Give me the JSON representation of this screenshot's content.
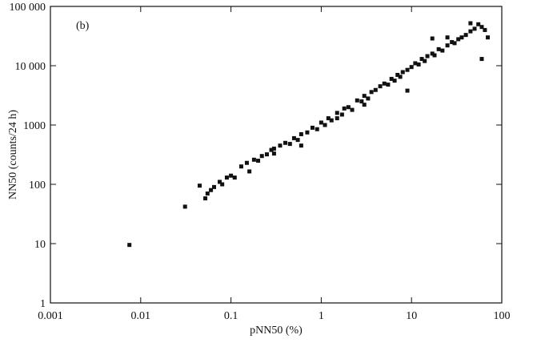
{
  "chart_data": {
    "type": "scatter",
    "annotation": "(b)",
    "x_label": "pNN50 (%)",
    "y_label": "NN50 (counts/24 h)",
    "xscale": "log",
    "yscale": "log",
    "xlim": [
      0.001,
      100
    ],
    "ylim": [
      1,
      100000
    ],
    "xticks": [
      0.001,
      0.01,
      0.1,
      1,
      10,
      100
    ],
    "yticks": [
      1,
      10,
      100,
      1000,
      {
        "value": 10000,
        "label": "10 000"
      },
      {
        "value": 100000,
        "label": "100 000"
      }
    ],
    "color": "#111111",
    "x": [
      0.0075,
      0.031,
      0.045,
      0.052,
      0.055,
      0.06,
      0.065,
      0.075,
      0.08,
      0.09,
      0.1,
      0.11,
      0.13,
      0.16,
      0.15,
      0.18,
      0.2,
      0.22,
      0.25,
      0.28,
      0.3,
      0.35,
      0.4,
      0.45,
      0.5,
      0.55,
      0.6,
      0.7,
      0.8,
      0.9,
      1.0,
      1.1,
      1.2,
      1.3,
      1.5,
      1.7,
      1.8,
      2.0,
      2.2,
      2.5,
      2.8,
      3.0,
      3.3,
      3.6,
      4.0,
      4.5,
      5.0,
      5.5,
      6.0,
      6.5,
      7.0,
      7.5,
      8.0,
      9.0,
      10,
      11,
      12,
      13,
      14,
      15,
      17,
      18,
      20,
      22,
      25,
      28,
      30,
      33,
      36,
      40,
      45,
      50,
      55,
      60,
      65,
      70,
      60,
      17,
      9,
      3,
      1.5,
      0.6,
      0.3,
      25,
      45
    ],
    "values": [
      9.5,
      42,
      95,
      58,
      70,
      80,
      90,
      110,
      100,
      130,
      140,
      130,
      200,
      165,
      230,
      260,
      250,
      300,
      320,
      380,
      330,
      450,
      500,
      480,
      600,
      560,
      700,
      750,
      900,
      850,
      1100,
      1000,
      1300,
      1200,
      1600,
      1500,
      1900,
      2000,
      1800,
      2600,
      2500,
      3100,
      2800,
      3600,
      3900,
      4500,
      5000,
      4800,
      6000,
      5600,
      7000,
      6500,
      7800,
      8500,
      9500,
      11000,
      10500,
      13000,
      12000,
      14500,
      16000,
      15000,
      19000,
      18000,
      22000,
      25000,
      24000,
      28000,
      30000,
      33000,
      38000,
      42000,
      50000,
      45000,
      40000,
      30000,
      13000,
      28800,
      3800,
      2200,
      1300,
      450,
      400,
      30000,
      52000
    ]
  }
}
